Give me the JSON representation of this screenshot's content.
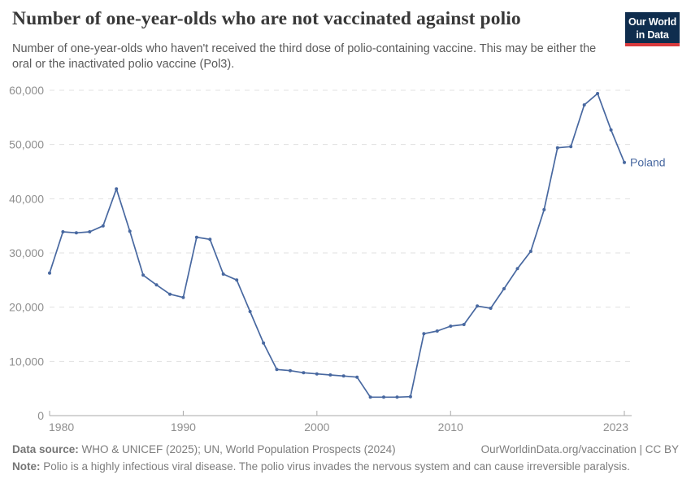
{
  "header": {
    "title": "Number of one-year-olds who are not vaccinated against polio",
    "subtitle": "Number of one-year-olds who haven't received the third dose of polio-containing vaccine. This may be either the oral or the inactivated polio vaccine (Pol3).",
    "logo": {
      "line1": "Our World",
      "line2": "in Data"
    }
  },
  "chart_data": {
    "type": "line",
    "title": "Number of one-year-olds who are not vaccinated against polio",
    "entity_label": "Poland",
    "x": [
      1980,
      1981,
      1982,
      1983,
      1984,
      1985,
      1986,
      1987,
      1988,
      1989,
      1990,
      1991,
      1992,
      1993,
      1994,
      1995,
      1996,
      1997,
      1998,
      1999,
      2000,
      2001,
      2002,
      2003,
      2004,
      2005,
      2006,
      2007,
      2008,
      2009,
      2010,
      2011,
      2012,
      2013,
      2014,
      2015,
      2016,
      2017,
      2018,
      2019,
      2020,
      2021,
      2022,
      2023
    ],
    "series": [
      {
        "name": "Poland",
        "color": "#4868a0",
        "values": [
          26300,
          33900,
          33700,
          33900,
          35000,
          41800,
          34000,
          25900,
          24100,
          22400,
          21800,
          32900,
          32500,
          26100,
          25000,
          19200,
          13400,
          8500,
          8300,
          7900,
          7700,
          7500,
          7300,
          7100,
          3400,
          3400,
          3400,
          3500,
          15100,
          15600,
          16500,
          16800,
          20200,
          19800,
          23400,
          27100,
          30300,
          38000,
          49400,
          49600,
          57300,
          59400,
          52700,
          46700
        ]
      }
    ],
    "xlabel": "",
    "ylabel": "",
    "ylim": [
      0,
      60000
    ],
    "yticks": [
      0,
      10000,
      20000,
      30000,
      40000,
      50000,
      60000
    ],
    "ytick_labels": [
      "0",
      "10,000",
      "20,000",
      "30,000",
      "40,000",
      "50,000",
      "60,000"
    ],
    "xticks": [
      1980,
      1990,
      2000,
      2010,
      2023
    ],
    "grid": "horizontal-dashed",
    "legend_position": "end-of-line-label"
  },
  "footer": {
    "datasource_label": "Data source:",
    "datasource_text": "WHO & UNICEF (2025); UN, World Population Prospects (2024)",
    "link": "OurWorldinData.org/vaccination | CC BY",
    "note_label": "Note:",
    "note_text": "Polio is a highly infectious viral disease. The polio virus invades the nervous system and can cause irreversible paralysis."
  },
  "colors": {
    "line": "#4868a0",
    "entity_label": "#4868a0",
    "title": "#383838",
    "subtitle": "#5a5a5a",
    "tick_label": "#8f8f8f",
    "axis": "#a8a8a8",
    "gridline": "#e0e0e0",
    "footer_text": "#7d7d7d",
    "logo_bg": "#0f2d4e",
    "logo_accent": "#d93a3d"
  }
}
